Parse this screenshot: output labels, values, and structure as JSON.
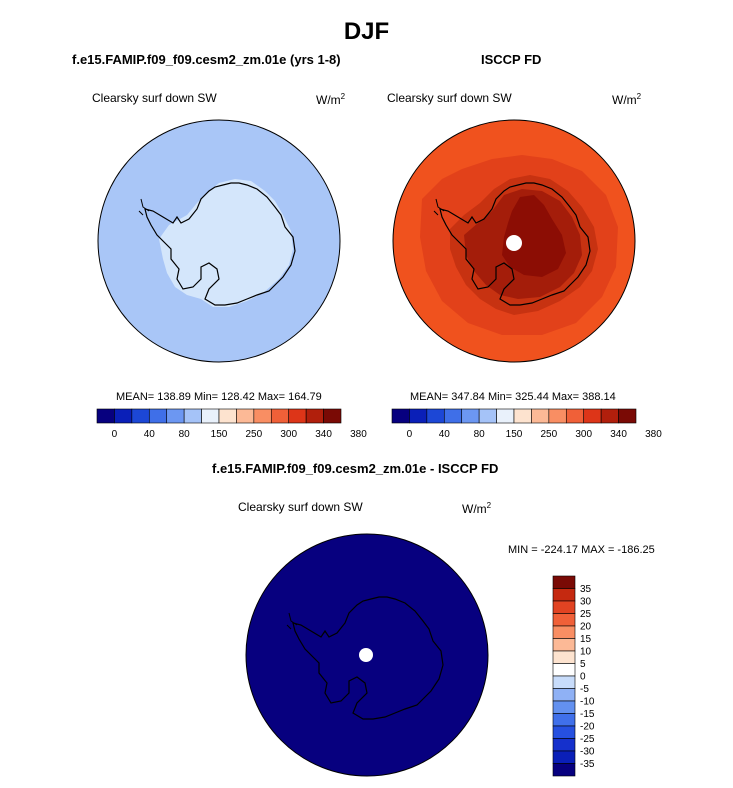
{
  "title": "DJF",
  "panels": {
    "model": {
      "title": "f.e15.FAMIP.f09_f09.cesm2_zm.01e (yrs 1-8)",
      "variable": "Clearsky surf down SW",
      "units_base": "W/m",
      "units_exp": "2",
      "stats": "MEAN= 138.89  Min= 128.42  Max= 164.79"
    },
    "obs": {
      "title": "ISCCP FD",
      "variable": "Clearsky surf down SW",
      "units_base": "W/m",
      "units_exp": "2",
      "stats": "MEAN= 347.84  Min= 325.44  Max= 388.14"
    },
    "diff": {
      "title": "f.e15.FAMIP.f09_f09.cesm2_zm.01e - ISCCP FD",
      "variable": "Clearsky surf down SW",
      "units_base": "W/m",
      "units_exp": "2",
      "stats": "MIN = -224.17 MAX = -186.25"
    }
  },
  "colorbars": {
    "abs_colors": [
      "#07007f",
      "#0a1fb8",
      "#1c47d6",
      "#3f6fe8",
      "#6c97f2",
      "#a5c3f8",
      "#e9f1fb",
      "#fde3cf",
      "#fcb996",
      "#f98e63",
      "#f06038",
      "#dd3518",
      "#b11f0c",
      "#7a0a05"
    ],
    "abs_ticks": [
      "0",
      "40",
      "80",
      "150",
      "250",
      "300",
      "340",
      "380"
    ],
    "diff_colors": [
      "#07007f",
      "#0a1fb8",
      "#1530cc",
      "#2650e0",
      "#4070ea",
      "#6391f0",
      "#8fb1f5",
      "#c8dcfa",
      "#ffffff",
      "#fde3cf",
      "#fcb996",
      "#f98e63",
      "#f06038",
      "#e14322",
      "#c52910",
      "#7a0a05"
    ],
    "diff_ticks": [
      "35",
      "30",
      "25",
      "20",
      "15",
      "10",
      "5",
      "0",
      "-5",
      "-10",
      "-15",
      "-20",
      "-25",
      "-30",
      "-35"
    ]
  },
  "maps": {
    "model_colors": {
      "ocean": "#a9c6f7",
      "land": "#d4e6fb",
      "interior": "#d9e8fb"
    },
    "obs_colors": {
      "ocean": "#f0521e",
      "ring": "#e2411a",
      "coast": "#c73211",
      "interior": "#a41d0a",
      "core": "#8c0d04"
    },
    "diff_colors": {
      "fill": "#07007f"
    }
  },
  "chart_data": [
    {
      "type": "heatmap",
      "title": "f.e15.FAMIP.f09_f09.cesm2_zm.01e (yrs 1-8)",
      "variable": "Clearsky surf down SW",
      "units": "W/m2",
      "projection": "south polar stereographic",
      "mean": 138.89,
      "min": 128.42,
      "max": 164.79,
      "colorbar_ticks": [
        0,
        40,
        80,
        150,
        250,
        300,
        340,
        380
      ]
    },
    {
      "type": "heatmap",
      "title": "ISCCP FD",
      "variable": "Clearsky surf down SW",
      "units": "W/m2",
      "projection": "south polar stereographic",
      "mean": 347.84,
      "min": 325.44,
      "max": 388.14,
      "colorbar_ticks": [
        0,
        40,
        80,
        150,
        250,
        300,
        340,
        380
      ]
    },
    {
      "type": "heatmap",
      "title": "f.e15.FAMIP.f09_f09.cesm2_zm.01e - ISCCP FD",
      "variable": "Clearsky surf down SW",
      "units": "W/m2",
      "projection": "south polar stereographic",
      "min": -224.17,
      "max": -186.25,
      "colorbar_ticks": [
        35,
        30,
        25,
        20,
        15,
        10,
        5,
        0,
        -5,
        -10,
        -15,
        -20,
        -25,
        -30,
        -35
      ]
    }
  ]
}
